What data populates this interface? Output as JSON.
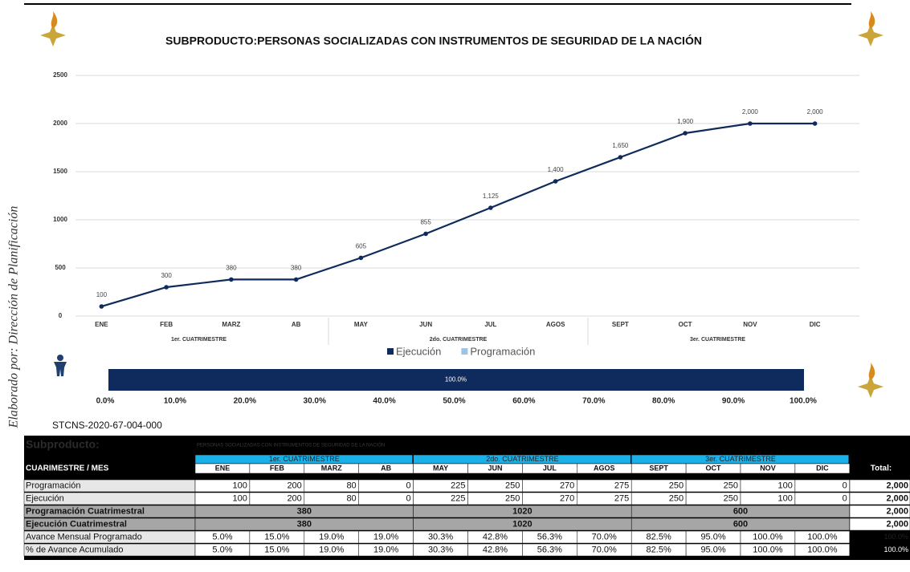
{
  "side_label": "Elaborado por: Dirección de Planificación",
  "code": "STCNS-2020-67-004-000",
  "chart_data": [
    {
      "type": "line",
      "title": "SUBPRODUCTO:PERSONAS SOCIALIZADAS CON INSTRUMENTOS DE SEGURIDAD DE LA NACIÓN",
      "categories": [
        "ENE",
        "FEB",
        "MARZ",
        "AB",
        "MAY",
        "JUN",
        "JUL",
        "AGOS",
        "SEPT",
        "OCT",
        "NOV",
        "DIC"
      ],
      "category_groups": [
        "1er. CUATRIMESTRE",
        "2do. CUATRIMESTRE",
        "3er. CUATRIMESTRE"
      ],
      "series": [
        {
          "name": "Ejecución",
          "color": "#0f2a5c",
          "values": [
            100,
            300,
            380,
            380,
            605,
            855,
            1125,
            1400,
            1650,
            1900,
            2000,
            2000
          ],
          "value_labels": [
            "100",
            "300",
            "380",
            "380",
            "605",
            "855",
            "1,125",
            "1,400",
            "1,650",
            "1,900",
            "2,000",
            "2,000"
          ]
        }
      ],
      "legend": [
        {
          "name": "Ejecución",
          "color": "#0f2a5c"
        },
        {
          "name": "Programación",
          "color": "#9dc3e6"
        }
      ],
      "ylim": [
        0,
        2500
      ],
      "yticks": [
        0,
        500,
        1000,
        1500,
        2000,
        2500
      ],
      "grid": true
    },
    {
      "type": "bar",
      "orientation": "horizontal",
      "values": [
        100
      ],
      "value_labels": [
        "100.0%"
      ],
      "color": "#0f2a5c",
      "xlim": [
        0,
        100
      ],
      "xticks": [
        {
          "value": 0,
          "label": "0.0%"
        },
        {
          "value": 10,
          "label": "10.0%"
        },
        {
          "value": 20,
          "label": "20.0%"
        },
        {
          "value": 30,
          "label": "30.0%"
        },
        {
          "value": 40,
          "label": "40.0%"
        },
        {
          "value": 50,
          "label": "50.0%"
        },
        {
          "value": 60,
          "label": "60.0%"
        },
        {
          "value": 70,
          "label": "70.0%"
        },
        {
          "value": 80,
          "label": "80.0%"
        },
        {
          "value": 90,
          "label": "90.0%"
        },
        {
          "value": 100,
          "label": "100.0%"
        }
      ]
    }
  ],
  "table": {
    "subproducto_label": "Subproducto:",
    "subproducto_text": "PERSONAS SOCIALIZADAS CON INSTRUMENTOS DE SEGURIDAD DE LA NACIÓN",
    "header": "CUARIMESTRE / MES",
    "total_header": "Total:",
    "groups": [
      "1er. CUATRIMESTRE",
      "2do. CUATRIMESTRE",
      "3er. CUATRIMESTRE"
    ],
    "months": [
      "ENE",
      "FEB",
      "MARZ",
      "AB",
      "MAY",
      "JUN",
      "JUL",
      "AGOS",
      "SEPT",
      "OCT",
      "NOV",
      "DIC"
    ],
    "rows": [
      [
        "Programación",
        "100",
        "200",
        "80",
        "0",
        "225",
        "250",
        "270",
        "275",
        "250",
        "250",
        "100",
        "0",
        "2,000"
      ],
      [
        "Ejecución",
        "100",
        "200",
        "80",
        "0",
        "225",
        "250",
        "270",
        "275",
        "250",
        "250",
        "100",
        "0",
        "2,000"
      ],
      [
        "Programación Cuatrimestral",
        "380",
        "1020",
        "600",
        "2,000"
      ],
      [
        "Ejecución Cuatrimestral",
        "380",
        "1020",
        "600",
        "2,000"
      ],
      [
        "Avance Mensual Programado",
        "5.0%",
        "15.0%",
        "19.0%",
        "19.0%",
        "30.3%",
        "42.8%",
        "56.3%",
        "70.0%",
        "82.5%",
        "95.0%",
        "100.0%",
        "100.0%",
        "100.0%"
      ],
      [
        "% de Avance Acumulado",
        "5.0%",
        "15.0%",
        "19.0%",
        "19.0%",
        "30.3%",
        "42.8%",
        "56.3%",
        "70.0%",
        "82.5%",
        "95.0%",
        "100.0%",
        "100.0%",
        "100.0%"
      ]
    ]
  }
}
